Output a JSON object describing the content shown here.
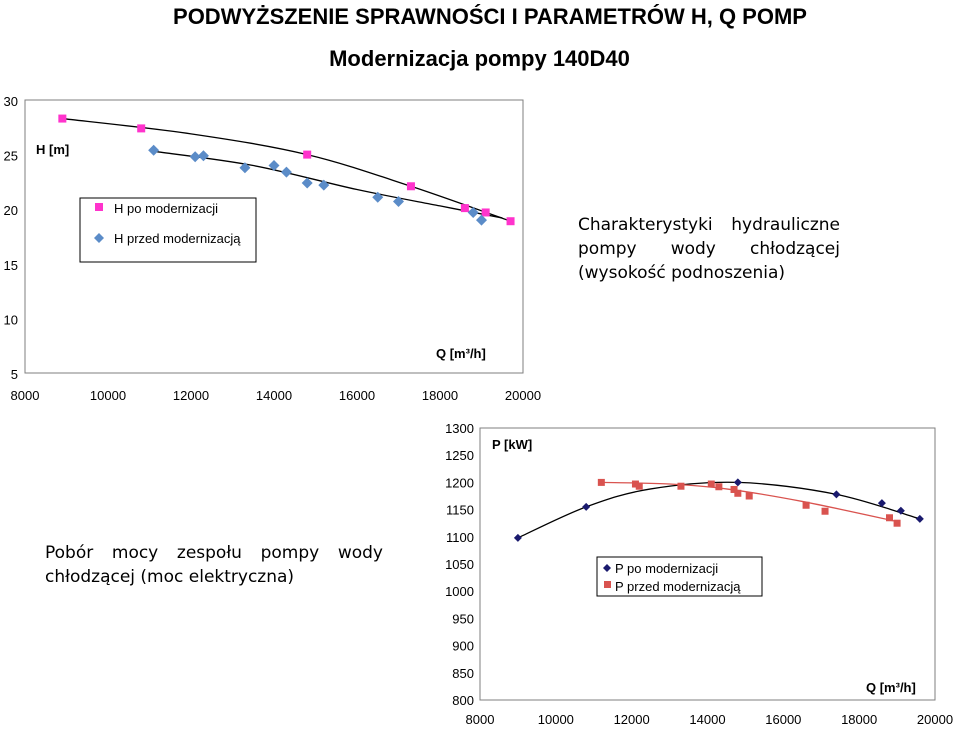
{
  "page": {
    "title": "PODWYŻSZENIE SPRAWNOŚCI I PARAMETRÓW H, Q POMP",
    "subtitle": "Modernizacja pompy 140D40",
    "description_top": "Charakterystyki hydrauliczne pompy wody chłodzącej (wysokość podnoszenia)",
    "description_bottom": "Pobór mocy zespołu pompy wody chłodzącej (moc elektryczna)"
  },
  "chart_data": [
    {
      "type": "scatter",
      "ylabel": "H [m]",
      "xlabel": "Q [m³/h]",
      "xlim": [
        8000,
        20000
      ],
      "ylim": [
        5,
        30
      ],
      "x_ticks": [
        8000,
        10000,
        12000,
        14000,
        16000,
        18000,
        20000
      ],
      "y_ticks": [
        5,
        10,
        15,
        20,
        25,
        30
      ],
      "legend_position": "top-left",
      "series": [
        {
          "name": "H po modernizacji",
          "color": "#ff33cc",
          "marker": "square",
          "points": [
            [
              8900,
              28.3
            ],
            [
              10800,
              27.4
            ],
            [
              14800,
              25.0
            ],
            [
              17300,
              22.1
            ],
            [
              18600,
              20.1
            ],
            [
              19100,
              19.7
            ],
            [
              19700,
              18.9
            ]
          ],
          "trend": [
            [
              8900,
              28.3
            ],
            [
              12000,
              26.9
            ],
            [
              14800,
              25.0
            ],
            [
              17300,
              22.1
            ],
            [
              19700,
              18.9
            ]
          ]
        },
        {
          "name": "H przed modernizacją",
          "color": "#5b8cc8",
          "marker": "diamond",
          "points": [
            [
              11100,
              25.4
            ],
            [
              12100,
              24.8
            ],
            [
              12300,
              24.9
            ],
            [
              13300,
              23.8
            ],
            [
              14000,
              24.0
            ],
            [
              14300,
              23.4
            ],
            [
              14800,
              22.4
            ],
            [
              15200,
              22.2
            ],
            [
              16500,
              21.1
            ],
            [
              17000,
              20.7
            ],
            [
              18800,
              19.7
            ],
            [
              19000,
              19.0
            ]
          ],
          "trend": [
            [
              11100,
              25.3
            ],
            [
              13500,
              24.0
            ],
            [
              16000,
              21.8
            ],
            [
              18000,
              20.3
            ],
            [
              19500,
              19.2
            ]
          ]
        }
      ]
    },
    {
      "type": "scatter",
      "ylabel": "P [kW]",
      "xlabel": "Q [m³/h]",
      "xlim": [
        8000,
        20000
      ],
      "ylim": [
        800,
        1300
      ],
      "x_ticks": [
        8000,
        10000,
        12000,
        14000,
        16000,
        18000,
        20000
      ],
      "y_ticks": [
        800,
        850,
        900,
        950,
        1000,
        1050,
        1100,
        1150,
        1200,
        1250,
        1300
      ],
      "legend_position": "right",
      "series": [
        {
          "name": "P po modernizacji",
          "color": "#1a1a6e",
          "marker": "diamond",
          "points": [
            [
              9000,
              1098
            ],
            [
              10800,
              1155
            ],
            [
              14800,
              1200
            ],
            [
              17400,
              1178
            ],
            [
              18600,
              1162
            ],
            [
              19100,
              1148
            ],
            [
              19600,
              1133
            ]
          ],
          "trend": [
            [
              9000,
              1098
            ],
            [
              10800,
              1155
            ],
            [
              12500,
              1188
            ],
            [
              14800,
              1200
            ],
            [
              17400,
              1178
            ],
            [
              19600,
              1133
            ]
          ]
        },
        {
          "name": "P przed modernizacją",
          "color": "#d9534f",
          "marker": "square",
          "points": [
            [
              11200,
              1200
            ],
            [
              12100,
              1197
            ],
            [
              12200,
              1193
            ],
            [
              13300,
              1193
            ],
            [
              14100,
              1197
            ],
            [
              14300,
              1192
            ],
            [
              14700,
              1187
            ],
            [
              14800,
              1180
            ],
            [
              15100,
              1175
            ],
            [
              16600,
              1158
            ],
            [
              17100,
              1147
            ],
            [
              18800,
              1135
            ],
            [
              19000,
              1125
            ]
          ],
          "trend": [
            [
              11200,
              1200
            ],
            [
              13000,
              1197
            ],
            [
              14500,
              1188
            ],
            [
              16500,
              1165
            ],
            [
              19000,
              1128
            ]
          ]
        }
      ]
    }
  ]
}
